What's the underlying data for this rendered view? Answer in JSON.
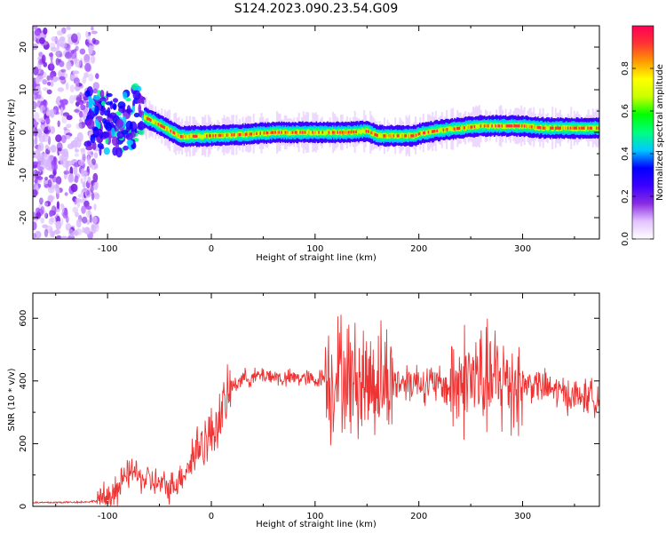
{
  "title": "S124.2023.090.23.54.G09",
  "chart_data": [
    {
      "type": "heatmap",
      "xlabel": "Height of straight line (km)",
      "ylabel": "Frequency (Hz)",
      "xlim": [
        -172,
        374
      ],
      "ylim": [
        -25,
        25
      ],
      "x_ticks": [
        -100,
        0,
        100,
        200,
        300
      ],
      "y_ticks": [
        -20,
        -10,
        0,
        10,
        20
      ],
      "colorbar": {
        "label": "Normalized spectral amplitude",
        "range": [
          0,
          1
        ],
        "ticks": [
          0.0,
          0.2,
          0.4,
          0.6,
          0.8
        ],
        "colormap": [
          "#ffffff",
          "#e3c2ff",
          "#8a2be2",
          "#3b00ff",
          "#0000ff",
          "#00c8ff",
          "#00ff80",
          "#00ff00",
          "#c8ff00",
          "#ffff00",
          "#ff9900",
          "#ff3333",
          "#ff0055"
        ]
      },
      "ridge": {
        "x": [
          -172,
          -120,
          -90,
          -70,
          -60,
          -45,
          -30,
          0,
          30,
          60,
          100,
          130,
          150,
          160,
          195,
          200,
          220,
          240,
          260,
          300,
          320,
          374
        ],
        "frequency": [
          0,
          3,
          2,
          4,
          3,
          1,
          -1,
          -0.8,
          -0.5,
          0,
          0,
          0,
          0.3,
          -0.8,
          -0.8,
          -0.3,
          0.5,
          1,
          1.5,
          1.5,
          1,
          1
        ]
      },
      "grid": false
    },
    {
      "type": "line",
      "xlabel": "Height of straight line (km)",
      "ylabel": "SNR (10 * v/v)",
      "xlim": [
        -172,
        374
      ],
      "ylim": [
        0,
        680
      ],
      "x_ticks": [
        -100,
        0,
        100,
        200,
        300
      ],
      "y_ticks": [
        0,
        200,
        400,
        600
      ],
      "grid": false,
      "line_color": "#ee3333",
      "series": [
        {
          "x": [
            -172,
            -160,
            -140,
            -120,
            -110,
            -100,
            -90,
            -80,
            -75,
            -70,
            -60,
            -50,
            -40,
            -30,
            -20,
            -15,
            -10,
            0,
            10,
            20,
            30,
            40,
            50,
            60,
            70,
            80,
            90,
            100,
            105,
            110,
            112,
            115,
            120,
            125,
            130,
            140,
            150,
            160,
            170,
            180,
            190,
            200,
            210,
            220,
            230,
            235,
            240,
            250,
            260,
            270,
            280,
            290,
            300,
            310,
            320,
            330,
            340,
            350,
            360,
            374
          ],
          "y": [
            12,
            12,
            13,
            14,
            18,
            30,
            60,
            100,
            120,
            90,
            85,
            70,
            60,
            90,
            140,
            180,
            200,
            230,
            300,
            380,
            410,
            410,
            420,
            415,
            405,
            410,
            410,
            400,
            410,
            415,
            430,
            380,
            420,
            430,
            410,
            400,
            400,
            410,
            395,
            395,
            400,
            400,
            390,
            385,
            380,
            390,
            400,
            410,
            405,
            395,
            400,
            400,
            390,
            390,
            380,
            370,
            360,
            350,
            350,
            350
          ]
        }
      ]
    }
  ]
}
